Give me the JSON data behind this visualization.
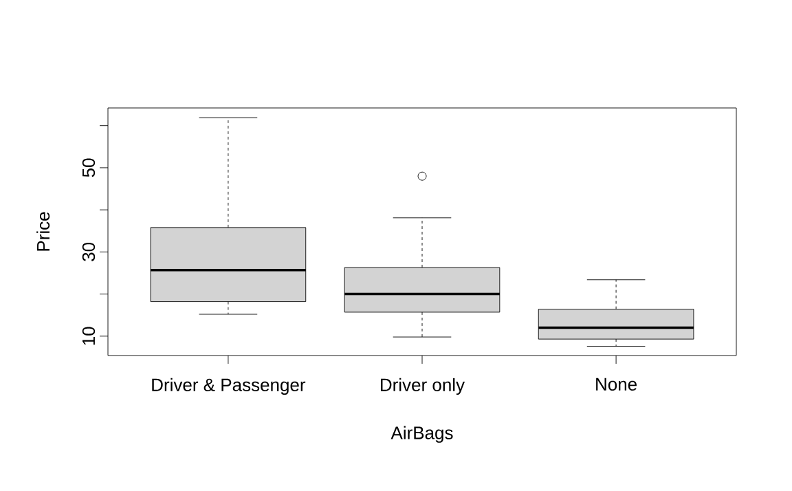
{
  "chart_data": {
    "type": "box",
    "xlabel": "AirBags",
    "ylabel": "Price",
    "categories": [
      "Driver & Passenger",
      "Driver only",
      "None"
    ],
    "boxes": [
      {
        "low": 15.2,
        "q1": 18.2,
        "median": 25.7,
        "q3": 35.8,
        "high": 61.9
      },
      {
        "low": 9.8,
        "q1": 15.7,
        "median": 20.0,
        "q3": 26.3,
        "high": 38.1,
        "outliers": [
          48.0
        ]
      },
      {
        "low": 7.6,
        "q1": 9.3,
        "median": 12.0,
        "q3": 16.4,
        "high": 23.4
      }
    ],
    "color": "#d3d3d3",
    "grid": false,
    "ylim": [
      5.4,
      64.2
    ],
    "yticks": [
      10,
      {
        "value": 20,
        "label": null
      },
      30,
      {
        "value": 40,
        "label": null
      },
      50,
      {
        "value": 60,
        "label": null
      }
    ]
  }
}
